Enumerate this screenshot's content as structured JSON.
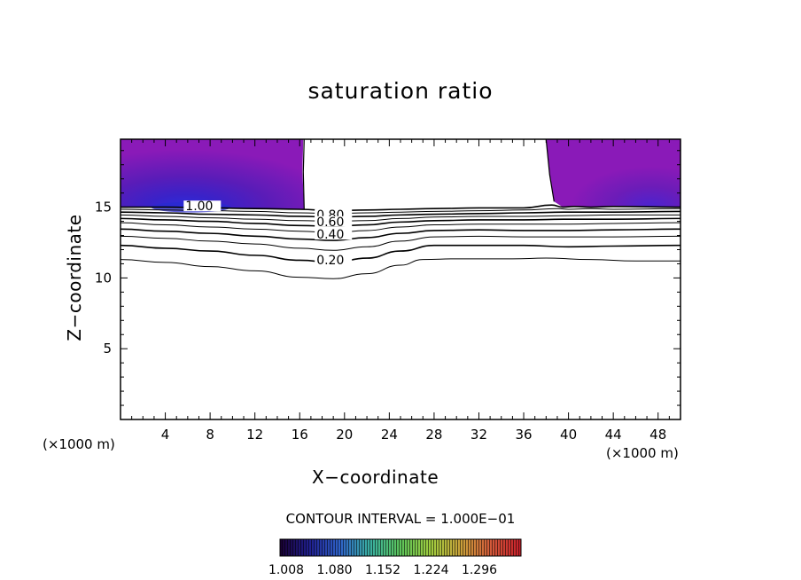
{
  "chart_data": {
    "type": "contour",
    "title": "saturation ratio",
    "xlabel": "X−coordinate",
    "ylabel": "Z−coordinate",
    "x_unit_left": "(×1000 m)",
    "x_unit_right": "(×1000 m)",
    "xlim": [
      0,
      50
    ],
    "ylim": [
      0,
      19.8
    ],
    "x_ticks": [
      4,
      8,
      12,
      16,
      20,
      24,
      28,
      32,
      36,
      40,
      44,
      48
    ],
    "y_ticks": [
      5,
      10,
      15
    ],
    "contour_interval_text": "CONTOUR INTERVAL = 1.000E−01",
    "contour_labels": [
      {
        "text": "1.00",
        "x": 5.8,
        "z": 14.9
      },
      {
        "text": "0.80",
        "x": 17.5,
        "z": 14.3
      },
      {
        "text": "0.60",
        "x": 17.5,
        "z": 13.8
      },
      {
        "text": "0.40",
        "x": 17.5,
        "z": 12.9
      },
      {
        "text": "0.20",
        "x": 17.5,
        "z": 11.1
      }
    ],
    "contours": [
      {
        "level": 0.1,
        "points": [
          [
            0,
            11.3
          ],
          [
            4,
            11.1
          ],
          [
            8,
            10.8
          ],
          [
            12,
            10.5
          ],
          [
            16,
            10.05
          ],
          [
            19,
            9.95
          ],
          [
            22,
            10.3
          ],
          [
            25,
            10.9
          ],
          [
            27,
            11.3
          ],
          [
            30,
            11.35
          ],
          [
            35,
            11.35
          ],
          [
            38,
            11.4
          ],
          [
            42,
            11.3
          ],
          [
            46,
            11.2
          ],
          [
            50,
            11.2
          ]
        ]
      },
      {
        "level": 0.2,
        "points": [
          [
            0,
            12.3
          ],
          [
            4,
            12.1
          ],
          [
            8,
            11.9
          ],
          [
            12,
            11.6
          ],
          [
            16,
            11.25
          ],
          [
            19,
            11.1
          ],
          [
            22,
            11.4
          ],
          [
            25,
            11.9
          ],
          [
            28,
            12.3
          ],
          [
            32,
            12.3
          ],
          [
            36,
            12.3
          ],
          [
            40,
            12.2
          ],
          [
            44,
            12.25
          ],
          [
            50,
            12.3
          ]
        ]
      },
      {
        "level": 0.3,
        "points": [
          [
            0,
            12.95
          ],
          [
            4,
            12.8
          ],
          [
            8,
            12.6
          ],
          [
            12,
            12.4
          ],
          [
            16,
            12.1
          ],
          [
            19,
            11.95
          ],
          [
            22,
            12.2
          ],
          [
            25,
            12.6
          ],
          [
            28,
            12.9
          ],
          [
            32,
            12.95
          ],
          [
            36,
            12.9
          ],
          [
            40,
            12.9
          ],
          [
            44,
            12.9
          ],
          [
            50,
            12.95
          ]
        ]
      },
      {
        "level": 0.4,
        "points": [
          [
            0,
            13.45
          ],
          [
            4,
            13.3
          ],
          [
            8,
            13.15
          ],
          [
            12,
            12.95
          ],
          [
            16,
            12.75
          ],
          [
            19,
            12.65
          ],
          [
            22,
            12.85
          ],
          [
            25,
            13.15
          ],
          [
            28,
            13.35
          ],
          [
            32,
            13.4
          ],
          [
            36,
            13.35
          ],
          [
            40,
            13.35
          ],
          [
            44,
            13.4
          ],
          [
            50,
            13.45
          ]
        ]
      },
      {
        "level": 0.5,
        "points": [
          [
            0,
            13.9
          ],
          [
            4,
            13.75
          ],
          [
            8,
            13.6
          ],
          [
            12,
            13.45
          ],
          [
            16,
            13.3
          ],
          [
            19,
            13.2
          ],
          [
            22,
            13.35
          ],
          [
            25,
            13.6
          ],
          [
            28,
            13.75
          ],
          [
            32,
            13.8
          ],
          [
            36,
            13.8
          ],
          [
            40,
            13.8
          ],
          [
            44,
            13.85
          ],
          [
            50,
            13.9
          ]
        ]
      },
      {
        "level": 0.6,
        "points": [
          [
            0,
            14.2
          ],
          [
            4,
            14.1
          ],
          [
            8,
            14.0
          ],
          [
            12,
            13.85
          ],
          [
            16,
            13.7
          ],
          [
            19,
            13.65
          ],
          [
            22,
            13.75
          ],
          [
            25,
            13.95
          ],
          [
            28,
            14.05
          ],
          [
            32,
            14.1
          ],
          [
            36,
            14.1
          ],
          [
            40,
            14.15
          ],
          [
            44,
            14.15
          ],
          [
            50,
            14.2
          ]
        ]
      },
      {
        "level": 0.7,
        "points": [
          [
            0,
            14.45
          ],
          [
            4,
            14.35
          ],
          [
            8,
            14.25
          ],
          [
            12,
            14.15
          ],
          [
            16,
            14.05
          ],
          [
            19,
            14.0
          ],
          [
            22,
            14.05
          ],
          [
            25,
            14.2
          ],
          [
            28,
            14.3
          ],
          [
            32,
            14.35
          ],
          [
            36,
            14.35
          ],
          [
            40,
            14.4
          ],
          [
            44,
            14.45
          ],
          [
            50,
            14.45
          ]
        ]
      },
      {
        "level": 0.8,
        "points": [
          [
            0,
            14.65
          ],
          [
            4,
            14.6
          ],
          [
            8,
            14.5
          ],
          [
            12,
            14.45
          ],
          [
            16,
            14.35
          ],
          [
            19,
            14.3
          ],
          [
            22,
            14.35
          ],
          [
            25,
            14.45
          ],
          [
            28,
            14.5
          ],
          [
            32,
            14.55
          ],
          [
            36,
            14.6
          ],
          [
            40,
            14.65
          ],
          [
            44,
            14.65
          ],
          [
            50,
            14.7
          ]
        ]
      },
      {
        "level": 0.9,
        "points": [
          [
            0,
            14.85
          ],
          [
            4,
            14.8
          ],
          [
            8,
            14.75
          ],
          [
            12,
            14.7
          ],
          [
            16,
            14.6
          ],
          [
            19,
            14.55
          ],
          [
            22,
            14.6
          ],
          [
            25,
            14.65
          ],
          [
            28,
            14.7
          ],
          [
            32,
            14.75
          ],
          [
            36,
            14.8
          ],
          [
            39,
            14.9
          ],
          [
            40,
            14.85
          ],
          [
            42,
            14.9
          ],
          [
            44,
            14.85
          ],
          [
            50,
            14.9
          ]
        ]
      },
      {
        "level": 1.0,
        "points": [
          [
            0,
            15.0
          ],
          [
            4,
            15.0
          ],
          [
            8,
            14.95
          ],
          [
            12,
            14.9
          ],
          [
            16,
            14.85
          ],
          [
            19,
            14.75
          ],
          [
            22,
            14.8
          ],
          [
            25,
            14.85
          ],
          [
            28,
            14.9
          ],
          [
            32,
            14.95
          ],
          [
            36,
            14.95
          ],
          [
            38.5,
            15.15
          ],
          [
            39.5,
            15.0
          ],
          [
            40.5,
            15.05
          ],
          [
            42,
            15.0
          ],
          [
            44,
            15.05
          ],
          [
            50,
            15.0
          ]
        ]
      }
    ],
    "supersaturated_regions": [
      {
        "x_range": [
          0,
          16.4
        ],
        "z_range": [
          14.8,
          19.8
        ]
      },
      {
        "x_range": [
          38.0,
          50
        ],
        "z_range": [
          15.0,
          19.8
        ]
      }
    ],
    "colorbar": {
      "tick_labels": [
        "1.008",
        "1.080",
        "1.152",
        "1.224",
        "1.296"
      ],
      "stops": [
        "#1a0033",
        "#202090",
        "#2f63c8",
        "#3ab0a0",
        "#5cc45a",
        "#9fcc3f",
        "#c9a13a",
        "#d35a3a",
        "#c81e2a"
      ]
    },
    "fill_colors": {
      "background": "#8a1ab8",
      "mid": "#6c18b0",
      "deep": "#4216a8",
      "core": "#2a2ad0"
    }
  }
}
